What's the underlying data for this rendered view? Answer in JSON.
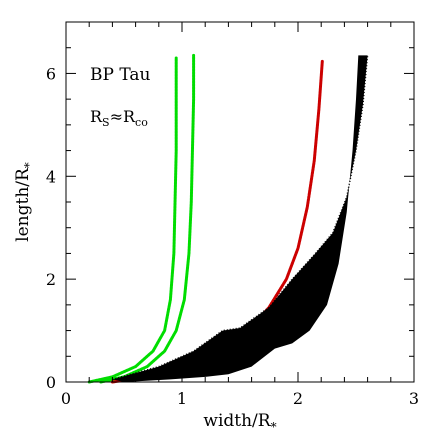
{
  "chart_data": {
    "type": "scatter",
    "xlabel_main": "width/R",
    "xlabel_sub": "*",
    "ylabel_main": "length/R",
    "ylabel_sub": "*",
    "xlim": [
      0,
      3
    ],
    "ylim": [
      0,
      7
    ],
    "x_ticks": [
      0,
      1,
      2,
      3
    ],
    "x_tick_labels": [
      "0",
      "1",
      "2",
      "3"
    ],
    "y_ticks": [
      0,
      2,
      4,
      6
    ],
    "y_tick_labels": [
      "0",
      "2",
      "4",
      "6"
    ],
    "annotations": {
      "star_name": "BP Tau",
      "radius_label": {
        "r": "R",
        "s": "S",
        "approx": "≈",
        "co_r": "R",
        "co": "co"
      }
    },
    "series": [
      {
        "color": "#00dd00",
        "points": [
          [
            0.2,
            0.0
          ],
          [
            0.4,
            0.1
          ],
          [
            0.6,
            0.3
          ],
          [
            0.75,
            0.6
          ],
          [
            0.85,
            1.0
          ],
          [
            0.9,
            1.6
          ],
          [
            0.93,
            2.5
          ],
          [
            0.94,
            3.5
          ],
          [
            0.95,
            4.5
          ],
          [
            0.95,
            5.5
          ],
          [
            0.95,
            6.3
          ]
        ]
      },
      {
        "color": "#00dd00",
        "points": [
          [
            0.3,
            0.0
          ],
          [
            0.5,
            0.1
          ],
          [
            0.7,
            0.3
          ],
          [
            0.85,
            0.6
          ],
          [
            0.95,
            1.0
          ],
          [
            1.02,
            1.6
          ],
          [
            1.06,
            2.5
          ],
          [
            1.08,
            3.5
          ],
          [
            1.09,
            4.5
          ],
          [
            1.1,
            5.5
          ],
          [
            1.1,
            6.35
          ]
        ]
      },
      {
        "color": "#cc0000",
        "points": [
          [
            0.4,
            0.0
          ],
          [
            0.7,
            0.1
          ],
          [
            1.0,
            0.25
          ],
          [
            1.3,
            0.55
          ],
          [
            1.55,
            0.95
          ],
          [
            1.75,
            1.45
          ],
          [
            1.9,
            2.0
          ],
          [
            2.0,
            2.6
          ],
          [
            2.08,
            3.4
          ],
          [
            2.14,
            4.3
          ],
          [
            2.18,
            5.3
          ],
          [
            2.21,
            6.25
          ]
        ]
      },
      {
        "color": "#000000",
        "band_lower": [
          [
            0.5,
            0.0
          ],
          [
            0.9,
            0.05
          ],
          [
            1.2,
            0.1
          ],
          [
            1.4,
            0.15
          ],
          [
            1.6,
            0.3
          ],
          [
            1.8,
            0.65
          ],
          [
            1.95,
            0.75
          ],
          [
            2.1,
            1.0
          ],
          [
            2.25,
            1.5
          ],
          [
            2.35,
            2.3
          ],
          [
            2.42,
            3.3
          ],
          [
            2.47,
            4.5
          ],
          [
            2.5,
            5.5
          ],
          [
            2.52,
            6.35
          ]
        ],
        "band_upper": [
          [
            0.4,
            0.05
          ],
          [
            0.8,
            0.3
          ],
          [
            1.1,
            0.6
          ],
          [
            1.35,
            1.0
          ],
          [
            1.5,
            1.05
          ],
          [
            1.75,
            1.45
          ],
          [
            1.95,
            2.0
          ],
          [
            2.15,
            2.5
          ],
          [
            2.3,
            2.9
          ],
          [
            2.42,
            3.6
          ],
          [
            2.5,
            4.5
          ],
          [
            2.56,
            5.4
          ],
          [
            2.6,
            6.35
          ]
        ]
      }
    ]
  }
}
